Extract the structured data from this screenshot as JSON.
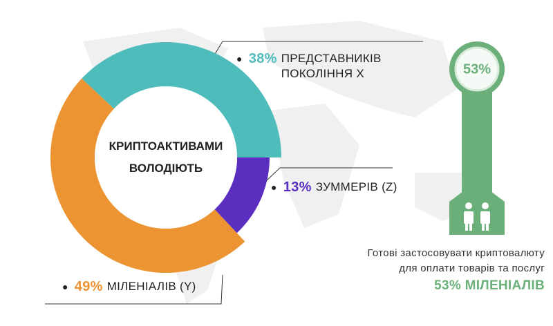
{
  "chart_data": {
    "type": "donut",
    "title": "КРИПТОАКТИВАМИ ВОЛОДІЮТЬ",
    "categories": [
      "ПРЕДСТАВНИКІВ ПОКОЛІННЯ Х",
      "ЗУММЕРІВ (Z)",
      "МІЛЕНІАЛІВ (Y)"
    ],
    "values": [
      38,
      13,
      49
    ],
    "value_labels": [
      "38%",
      "13%",
      "49%"
    ],
    "colors": [
      "#4fbcbc",
      "#5a2fc0",
      "#ec9432"
    ]
  },
  "side_panel": {
    "value": 53,
    "value_label": "53%",
    "caption": [
      "Готові застосовувати криптовалюту",
      "для оплати товарів та послуг"
    ],
    "highlight": "53% МІЛЕНІАЛІВ",
    "color": "#6bb07a"
  }
}
